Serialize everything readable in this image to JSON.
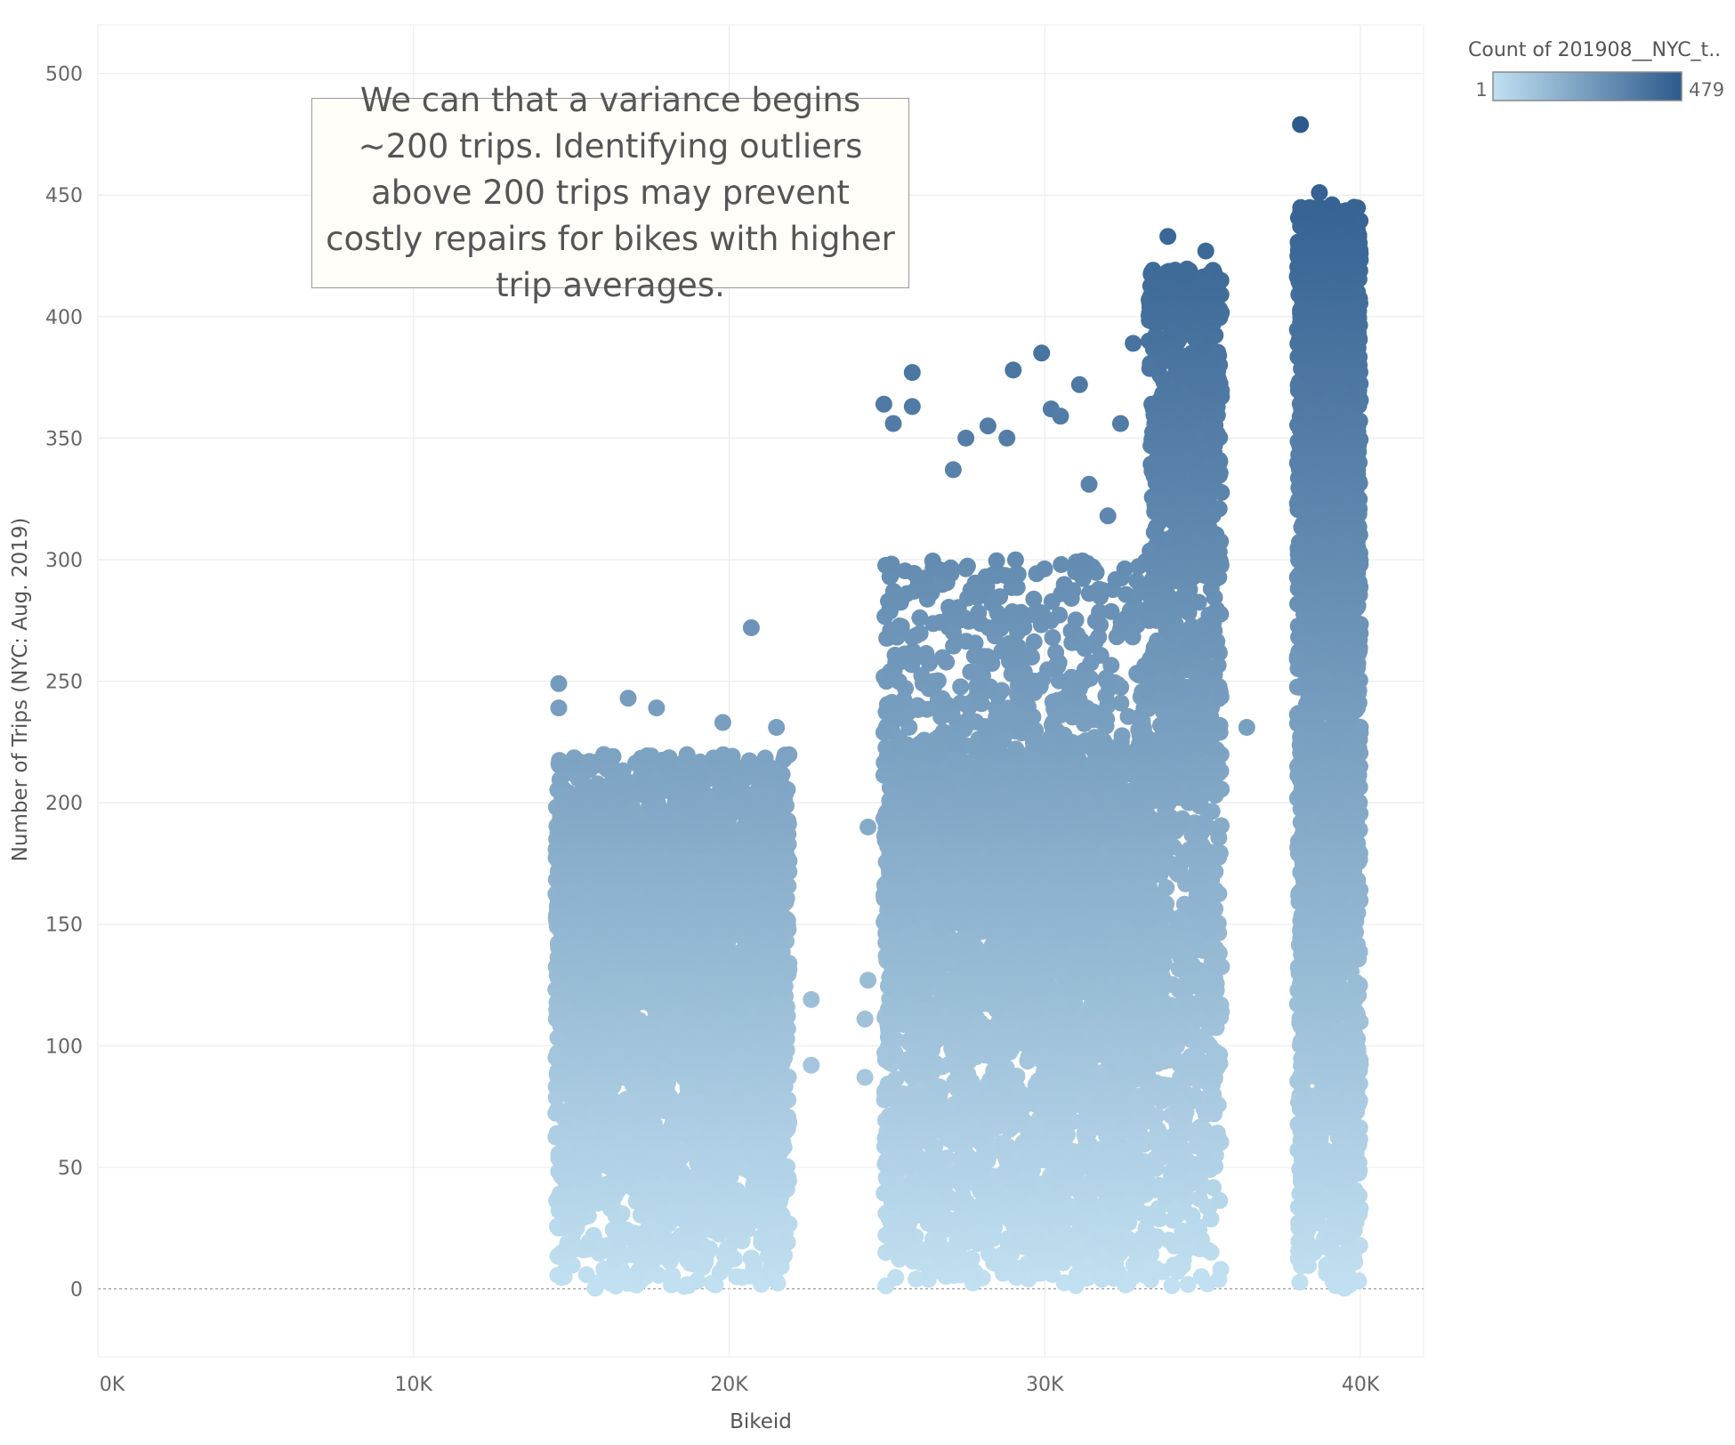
{
  "chart_data": {
    "type": "scatter",
    "xlabel": "Bikeid",
    "ylabel": "Number of Trips (NYC: Aug. 2019)",
    "xlim": [
      0,
      42000
    ],
    "ylim": [
      -28,
      520
    ],
    "x_ticks": [
      {
        "value": 0,
        "label": "0K"
      },
      {
        "value": 10000,
        "label": "10K"
      },
      {
        "value": 20000,
        "label": "20K"
      },
      {
        "value": 30000,
        "label": "30K"
      },
      {
        "value": 40000,
        "label": "40K"
      }
    ],
    "y_ticks": [
      0,
      50,
      100,
      150,
      200,
      250,
      300,
      350,
      400,
      450,
      500
    ],
    "grid": true,
    "legend": {
      "title": "Count of 201908__NYC_t..",
      "min_label": "1",
      "max_label": "479",
      "position": "top-right",
      "color_low": "#c1e0f1",
      "color_high": "#2c5a8c"
    },
    "annotation": "We can that a variance begins ~200 trips. Identifying outliers above 200 trips may prevent costly repairs for bikes with higher trip averages.",
    "clusters": [
      {
        "x_range": [
          14500,
          21900
        ],
        "typical_max": 185,
        "spread_max": 220,
        "count": 3400
      },
      {
        "x_range": [
          24900,
          33300
        ],
        "typical_max": 215,
        "spread_max": 300,
        "count": 3800
      },
      {
        "x_range": [
          33300,
          35600
        ],
        "typical_max": 400,
        "spread_max": 420,
        "count": 1500
      },
      {
        "x_range": [
          38000,
          40000
        ],
        "typical_max": 415,
        "spread_max": 445,
        "count": 2600
      }
    ],
    "outliers": [
      {
        "x": 14600,
        "y": 249
      },
      {
        "x": 14600,
        "y": 239
      },
      {
        "x": 16800,
        "y": 243
      },
      {
        "x": 17700,
        "y": 239
      },
      {
        "x": 19800,
        "y": 233
      },
      {
        "x": 20700,
        "y": 272
      },
      {
        "x": 21500,
        "y": 231
      },
      {
        "x": 22600,
        "y": 119
      },
      {
        "x": 22600,
        "y": 92
      },
      {
        "x": 24400,
        "y": 190
      },
      {
        "x": 24400,
        "y": 127
      },
      {
        "x": 24300,
        "y": 111
      },
      {
        "x": 24300,
        "y": 87
      },
      {
        "x": 24900,
        "y": 364
      },
      {
        "x": 25200,
        "y": 356
      },
      {
        "x": 25800,
        "y": 377
      },
      {
        "x": 25800,
        "y": 363
      },
      {
        "x": 27100,
        "y": 337
      },
      {
        "x": 27500,
        "y": 350
      },
      {
        "x": 28200,
        "y": 355
      },
      {
        "x": 28800,
        "y": 350
      },
      {
        "x": 29000,
        "y": 378
      },
      {
        "x": 29900,
        "y": 385
      },
      {
        "x": 30200,
        "y": 362
      },
      {
        "x": 30500,
        "y": 359
      },
      {
        "x": 31100,
        "y": 372
      },
      {
        "x": 31400,
        "y": 331
      },
      {
        "x": 32000,
        "y": 318
      },
      {
        "x": 32800,
        "y": 389
      },
      {
        "x": 32400,
        "y": 356
      },
      {
        "x": 33900,
        "y": 433
      },
      {
        "x": 35100,
        "y": 427
      },
      {
        "x": 35100,
        "y": 414
      },
      {
        "x": 36400,
        "y": 231
      },
      {
        "x": 38100,
        "y": 479
      },
      {
        "x": 38000,
        "y": 259
      },
      {
        "x": 38700,
        "y": 451
      },
      {
        "x": 39100,
        "y": 446
      },
      {
        "x": 39800,
        "y": 445
      }
    ]
  }
}
